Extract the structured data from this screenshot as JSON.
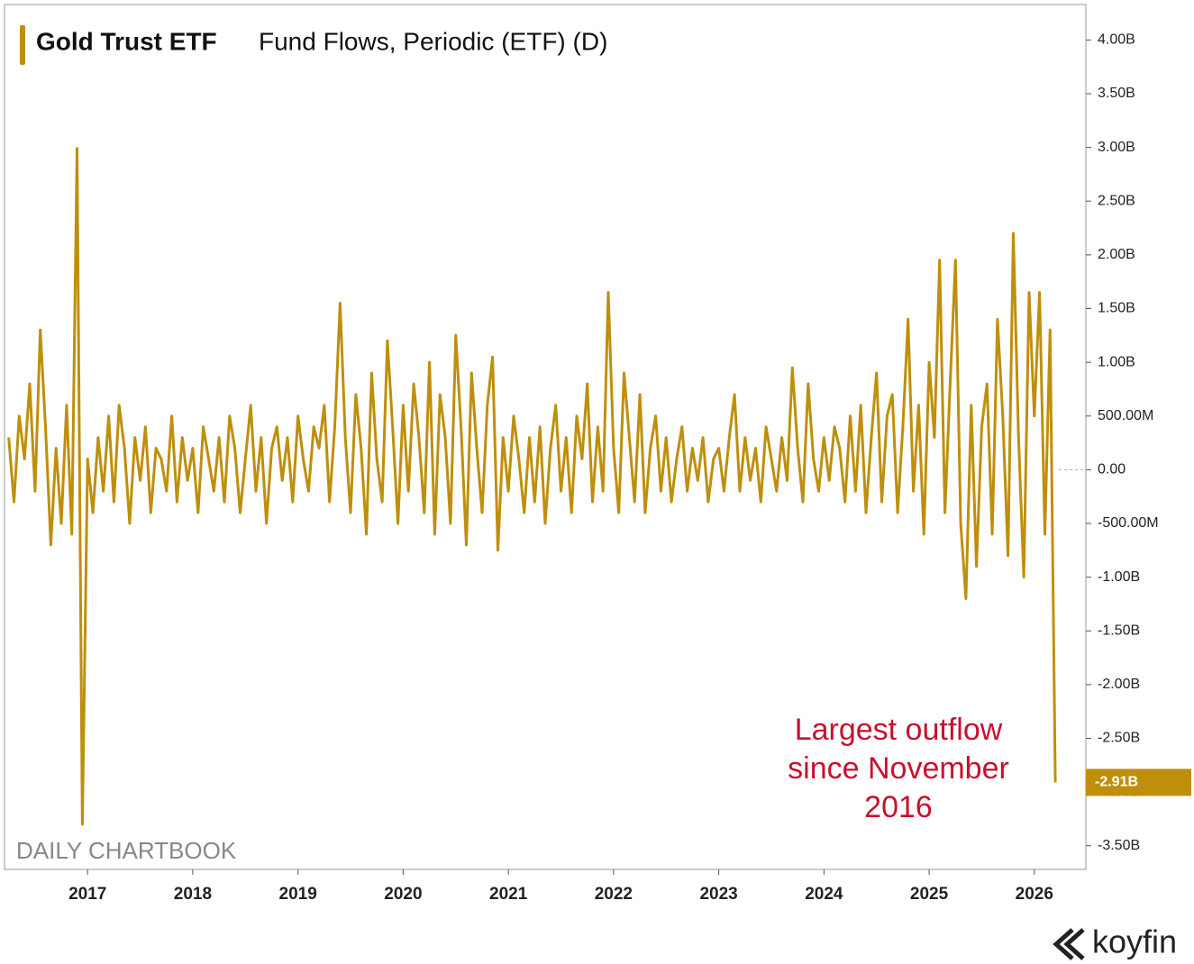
{
  "chart_data": {
    "type": "line",
    "title": "Gold Trust ETF",
    "subtitle": "Fund Flows, Periodic (ETF) (D)",
    "annotation": [
      "Largest outflow",
      "since November",
      "2016"
    ],
    "watermark": "DAILY CHARTBOOK",
    "brand": "koyfin",
    "current_value_tag": "-2.91B",
    "xlim": [
      2016.21,
      2026.49
    ],
    "xticks": [
      2017,
      2018,
      2019,
      2020,
      2021,
      2022,
      2023,
      2024,
      2025,
      2026
    ],
    "ylim": [
      -3.72,
      4.33
    ],
    "yticks": [
      {
        "value": 4,
        "label": "4.00B"
      },
      {
        "value": 3.5,
        "label": "3.50B"
      },
      {
        "value": 3,
        "label": "3.00B"
      },
      {
        "value": 2.5,
        "label": "2.50B"
      },
      {
        "value": 2,
        "label": "2.00B"
      },
      {
        "value": 1.5,
        "label": "1.50B"
      },
      {
        "value": 1,
        "label": "1.00B"
      },
      {
        "value": 0.5,
        "label": "500.00M"
      },
      {
        "value": 0,
        "label": "0.00"
      },
      {
        "value": -0.5,
        "label": "-500.00M"
      },
      {
        "value": -1,
        "label": "-1.00B"
      },
      {
        "value": -1.5,
        "label": "-1.50B"
      },
      {
        "value": -2,
        "label": "-2.00B"
      },
      {
        "value": -2.5,
        "label": "-2.50B"
      },
      {
        "value": -3,
        "label": "-3.00B"
      },
      {
        "value": -3.5,
        "label": "-3.50B"
      }
    ],
    "x": [
      2016.25,
      2016.3,
      2016.35,
      2016.4,
      2016.45,
      2016.5,
      2016.55,
      2016.6,
      2016.65,
      2016.7,
      2016.75,
      2016.8,
      2016.85,
      2016.9,
      2016.95,
      2017.0,
      2017.05,
      2017.1,
      2017.15,
      2017.2,
      2017.25,
      2017.3,
      2017.35,
      2017.4,
      2017.45,
      2017.5,
      2017.55,
      2017.6,
      2017.65,
      2017.7,
      2017.75,
      2017.8,
      2017.85,
      2017.9,
      2017.95,
      2018.0,
      2018.05,
      2018.1,
      2018.15,
      2018.2,
      2018.25,
      2018.3,
      2018.35,
      2018.4,
      2018.45,
      2018.5,
      2018.55,
      2018.6,
      2018.65,
      2018.7,
      2018.75,
      2018.8,
      2018.85,
      2018.9,
      2018.95,
      2019.0,
      2019.05,
      2019.1,
      2019.15,
      2019.2,
      2019.25,
      2019.3,
      2019.35,
      2019.4,
      2019.45,
      2019.5,
      2019.55,
      2019.6,
      2019.65,
      2019.7,
      2019.75,
      2019.8,
      2019.85,
      2019.9,
      2019.95,
      2020.0,
      2020.05,
      2020.1,
      2020.15,
      2020.2,
      2020.25,
      2020.3,
      2020.35,
      2020.4,
      2020.45,
      2020.5,
      2020.55,
      2020.6,
      2020.65,
      2020.7,
      2020.75,
      2020.8,
      2020.85,
      2020.9,
      2020.95,
      2021.0,
      2021.05,
      2021.1,
      2021.15,
      2021.2,
      2021.25,
      2021.3,
      2021.35,
      2021.4,
      2021.45,
      2021.5,
      2021.55,
      2021.6,
      2021.65,
      2021.7,
      2021.75,
      2021.8,
      2021.85,
      2021.9,
      2021.95,
      2022.0,
      2022.05,
      2022.1,
      2022.15,
      2022.2,
      2022.25,
      2022.3,
      2022.35,
      2022.4,
      2022.45,
      2022.5,
      2022.55,
      2022.6,
      2022.65,
      2022.7,
      2022.75,
      2022.8,
      2022.85,
      2022.9,
      2022.95,
      2023.0,
      2023.05,
      2023.1,
      2023.15,
      2023.2,
      2023.25,
      2023.3,
      2023.35,
      2023.4,
      2023.45,
      2023.5,
      2023.55,
      2023.6,
      2023.65,
      2023.7,
      2023.75,
      2023.8,
      2023.85,
      2023.9,
      2023.95,
      2024.0,
      2024.05,
      2024.1,
      2024.15,
      2024.2,
      2024.25,
      2024.3,
      2024.35,
      2024.4,
      2024.45,
      2024.5,
      2024.55,
      2024.6,
      2024.65,
      2024.7,
      2024.75,
      2024.8,
      2024.85,
      2024.9,
      2024.95,
      2025.0,
      2025.05,
      2025.1,
      2025.15,
      2025.2,
      2025.25,
      2025.3,
      2025.35,
      2025.4,
      2025.45,
      2025.5,
      2025.55,
      2025.6,
      2025.65,
      2025.7,
      2025.75,
      2025.8,
      2025.85,
      2025.9,
      2025.95,
      2026.0,
      2026.05,
      2026.1,
      2026.15,
      2026.2
    ],
    "series": [
      {
        "name": "Gold Trust ETF",
        "color": "#bf8f0c",
        "values": [
          0.3,
          -0.3,
          0.5,
          0.1,
          0.8,
          -0.2,
          1.3,
          0.4,
          -0.7,
          0.2,
          -0.5,
          0.6,
          -0.6,
          2.99,
          -3.3,
          0.1,
          -0.4,
          0.3,
          -0.2,
          0.5,
          -0.3,
          0.6,
          0.2,
          -0.5,
          0.3,
          -0.1,
          0.4,
          -0.4,
          0.2,
          0.1,
          -0.2,
          0.5,
          -0.3,
          0.3,
          -0.1,
          0.2,
          -0.4,
          0.4,
          0.1,
          -0.2,
          0.3,
          -0.3,
          0.5,
          0.2,
          -0.4,
          0.1,
          0.6,
          -0.2,
          0.3,
          -0.5,
          0.2,
          0.4,
          -0.1,
          0.3,
          -0.3,
          0.5,
          0.1,
          -0.2,
          0.4,
          0.2,
          0.6,
          -0.3,
          0.4,
          1.55,
          0.3,
          -0.4,
          0.7,
          0.2,
          -0.6,
          0.9,
          0.1,
          -0.3,
          1.2,
          0.4,
          -0.5,
          0.6,
          -0.2,
          0.8,
          0.3,
          -0.4,
          1.0,
          -0.6,
          0.7,
          0.3,
          -0.5,
          1.25,
          0.4,
          -0.7,
          0.9,
          0.2,
          -0.4,
          0.6,
          1.05,
          -0.75,
          0.3,
          -0.2,
          0.5,
          0.1,
          -0.4,
          0.3,
          -0.3,
          0.4,
          -0.5,
          0.2,
          0.6,
          -0.2,
          0.3,
          -0.4,
          0.5,
          0.1,
          0.8,
          -0.3,
          0.4,
          -0.2,
          1.65,
          0.2,
          -0.4,
          0.9,
          0.3,
          -0.3,
          0.7,
          -0.4,
          0.2,
          0.5,
          -0.2,
          0.3,
          -0.3,
          0.1,
          0.4,
          -0.2,
          0.2,
          -0.1,
          0.3,
          -0.3,
          0.1,
          0.2,
          -0.2,
          0.3,
          0.7,
          -0.2,
          0.3,
          -0.1,
          0.2,
          -0.3,
          0.4,
          0.1,
          -0.2,
          0.3,
          -0.1,
          0.95,
          0.2,
          -0.3,
          0.8,
          0.1,
          -0.2,
          0.3,
          -0.1,
          0.4,
          0.2,
          -0.3,
          0.5,
          -0.2,
          0.6,
          -0.4,
          0.3,
          0.9,
          -0.3,
          0.5,
          0.7,
          -0.4,
          0.4,
          1.4,
          -0.2,
          0.6,
          -0.6,
          1.0,
          0.3,
          1.95,
          -0.4,
          0.8,
          1.95,
          -0.5,
          -1.2,
          0.6,
          -0.9,
          0.4,
          0.8,
          -0.6,
          1.4,
          0.5,
          -0.8,
          2.2,
          0.3,
          -1.0,
          1.65,
          0.5,
          1.65,
          -0.6,
          1.3,
          -2.91
        ]
      }
    ]
  }
}
